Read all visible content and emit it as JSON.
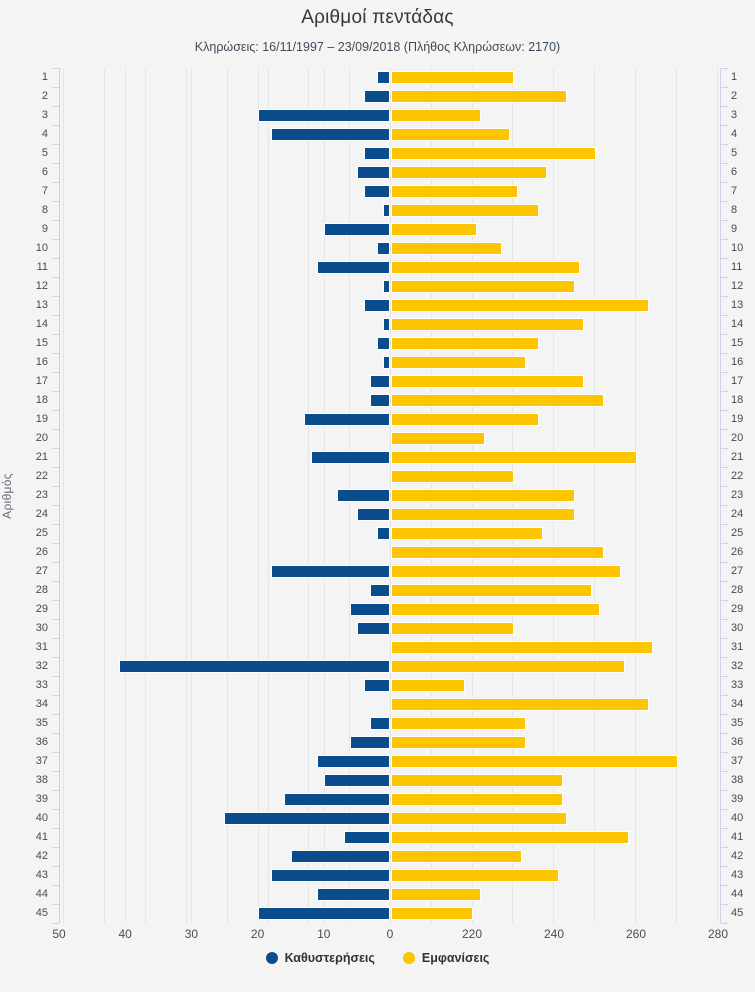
{
  "title": "Αριθμοί πεντάδας",
  "subtitle": "Κληρώσεις: 16/11/1997 – 23/09/2018 (Πλήθος Κληρώσεων: 2170)",
  "legend": {
    "delays_label": "Καθυστερήσεις",
    "appearances_label": "Εμφανίσεις"
  },
  "colors": {
    "delays": "#0b4d8c",
    "appearances": "#fdc400",
    "background": "#f4f4f4",
    "gridline": "#e5e5e5",
    "category_axis": "#ccd3e6"
  },
  "chart_data": {
    "type": "bar",
    "orientation": "horizontal-diverging",
    "title": "Αριθμοί πεντάδας",
    "subtitle": "Κληρώσεις: 16/11/1997 – 23/09/2018 (Πλήθος Κληρώσεων: 2170)",
    "ylabel": "Αριθμός",
    "grid": true,
    "legend_position": "bottom-center",
    "categories": [
      1,
      2,
      3,
      4,
      5,
      6,
      7,
      8,
      9,
      10,
      11,
      12,
      13,
      14,
      15,
      16,
      17,
      18,
      19,
      20,
      21,
      22,
      23,
      24,
      25,
      26,
      27,
      28,
      29,
      30,
      31,
      32,
      33,
      34,
      35,
      36,
      37,
      38,
      39,
      40,
      41,
      42,
      43,
      44,
      45
    ],
    "series": [
      {
        "name": "Καθυστερήσεις",
        "color": "#0b4d8c",
        "direction": "left",
        "axis_range": [
          0,
          50
        ],
        "axis_tick_labels": [
          50,
          40,
          30,
          20,
          10,
          0
        ],
        "values": [
          2,
          4,
          20,
          18,
          4,
          5,
          4,
          1,
          10,
          2,
          11,
          1,
          4,
          1,
          2,
          1,
          3,
          3,
          13,
          0,
          12,
          0,
          8,
          5,
          2,
          0,
          18,
          3,
          6,
          5,
          0,
          41,
          4,
          0,
          3,
          6,
          11,
          10,
          16,
          25,
          7,
          15,
          18,
          11,
          20
        ]
      },
      {
        "name": "Εμφανίσεις",
        "color": "#fdc400",
        "direction": "right",
        "axis_range": [
          200,
          280
        ],
        "axis_tick_labels": [
          220,
          240,
          260,
          280
        ],
        "values": [
          230,
          243,
          222,
          229,
          250,
          238,
          231,
          236,
          221,
          227,
          246,
          245,
          263,
          247,
          236,
          233,
          247,
          252,
          236,
          223,
          260,
          230,
          245,
          245,
          237,
          252,
          256,
          249,
          251,
          230,
          264,
          257,
          218,
          263,
          233,
          233,
          270,
          242,
          242,
          243,
          258,
          232,
          241,
          222,
          220
        ]
      }
    ]
  }
}
